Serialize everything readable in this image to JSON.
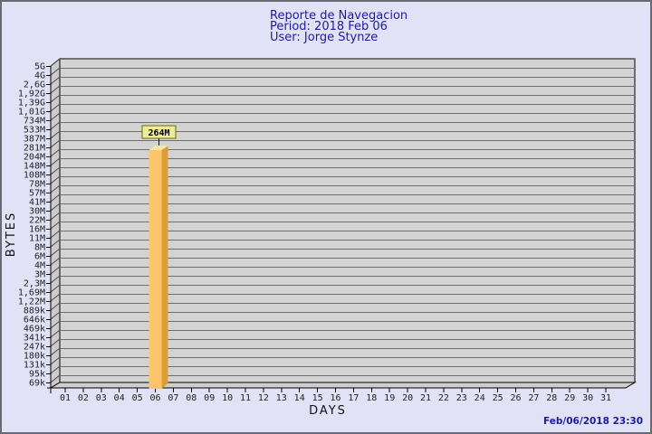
{
  "header": {
    "title": "Reporte de Navegacion",
    "period": "Period: 2018 Feb 06",
    "user": "User: Jorge Stynze"
  },
  "footer": {
    "generated": "Feb/06/2018 23:30"
  },
  "chart_data": {
    "type": "bar",
    "title": "Reporte de Navegacion",
    "subtitle_lines": [
      "Period: 2018 Feb 06",
      "User: Jorge Stynze"
    ],
    "xlabel": "DAYS",
    "ylabel": "BYTES",
    "y_scale": "log",
    "y_top_value_bytes": 5000000000,
    "y_bottom_value_bytes": 69000,
    "y_tick_labels": [
      "5G",
      "4G",
      "2,6G",
      "1,92G",
      "1,39G",
      "1,01G",
      "734M",
      "533M",
      "387M",
      "281M",
      "204M",
      "148M",
      "108M",
      "78M",
      "57M",
      "41M",
      "30M",
      "22M",
      "16M",
      "11M",
      "8M",
      "6M",
      "4M",
      "3M",
      "2,3M",
      "1,69M",
      "1,22M",
      "889k",
      "646k",
      "469k",
      "341k",
      "247k",
      "180k",
      "131k",
      "95k",
      "69k"
    ],
    "x_tick_labels": [
      "01",
      "02",
      "03",
      "04",
      "05",
      "06",
      "07",
      "08",
      "09",
      "10",
      "11",
      "12",
      "13",
      "14",
      "15",
      "16",
      "17",
      "18",
      "19",
      "20",
      "21",
      "22",
      "23",
      "24",
      "25",
      "26",
      "27",
      "28",
      "29",
      "30",
      "31"
    ],
    "values_bytes": [
      0,
      0,
      0,
      0,
      0,
      264000000,
      0,
      0,
      0,
      0,
      0,
      0,
      0,
      0,
      0,
      0,
      0,
      0,
      0,
      0,
      0,
      0,
      0,
      0,
      0,
      0,
      0,
      0,
      0,
      0,
      0
    ],
    "bars": [
      {
        "day": "06",
        "day_index": 5,
        "value_label": "264M",
        "value_bytes": 264000000
      }
    ],
    "grid": true,
    "legend_position": "none",
    "colors": {
      "title_color": "#1b1b9e",
      "page_bg": "#e2e2f7",
      "plot_bg": "#d3d3d3",
      "wall_bg": "#cbcbcb",
      "floor_bg": "#cfcfcf",
      "grid_line": "#6f6f6f",
      "bar_front": "#fdc46a",
      "bar_side": "#dd9e3a",
      "bar_top": "#f1e9a9",
      "value_box_bg": "#f0ea9b",
      "value_box_border": "#6b6b00"
    }
  }
}
